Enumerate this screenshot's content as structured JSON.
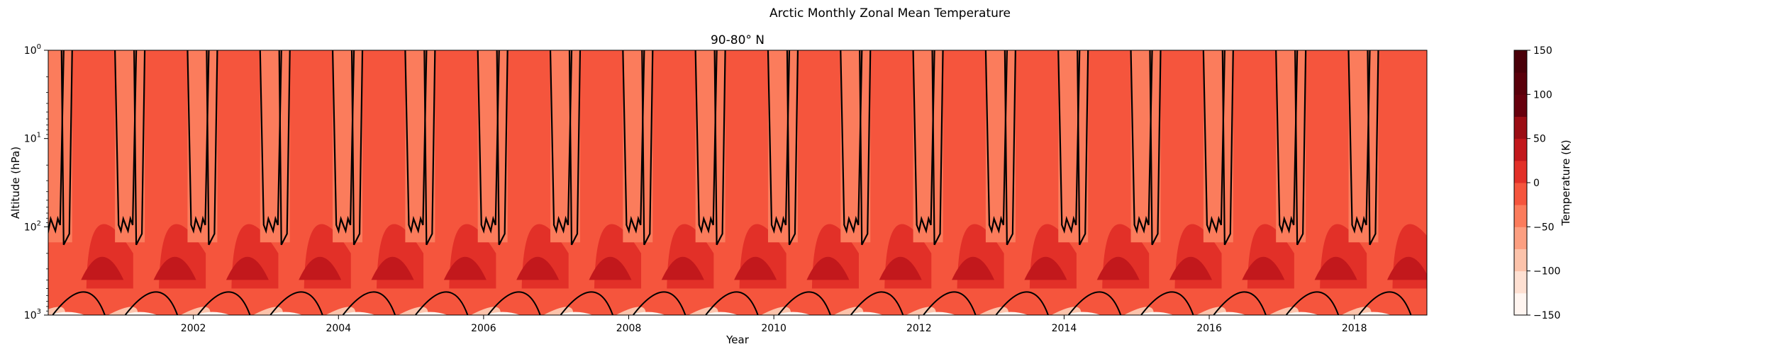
{
  "figure": {
    "suptitle": "Arctic Monthly Zonal Mean Temperature"
  },
  "chart_data": {
    "type": "heatmap",
    "title": "90-80° N",
    "xlabel": "Year",
    "ylabel": "Altitude (hPa)",
    "x_range": [
      "2000-01",
      "2019-01"
    ],
    "x_ticks": [
      "2002",
      "2004",
      "2006",
      "2008",
      "2010",
      "2012",
      "2014",
      "2016",
      "2018"
    ],
    "y_scale": "log",
    "y_range": [
      1000,
      1
    ],
    "y_ticks": [
      {
        "value": 1,
        "base": "10",
        "exp": "0"
      },
      {
        "value": 10,
        "base": "10",
        "exp": "1"
      },
      {
        "value": 100,
        "base": "10",
        "exp": "2"
      },
      {
        "value": 1000,
        "base": "10",
        "exp": "3"
      }
    ],
    "colorbar": {
      "label": "Temperature (K)",
      "range": [
        -150,
        150
      ],
      "levels": [
        -150,
        -125,
        -100,
        -75,
        -50,
        -25,
        0,
        25,
        50,
        75,
        100,
        125,
        150
      ],
      "ticks": [
        "−150",
        "−100",
        "−50",
        "0",
        "50",
        "100",
        "150"
      ],
      "tick_values": [
        -150,
        -100,
        -50,
        0,
        50,
        100,
        150
      ],
      "colors": [
        "#fff5f0",
        "#fee0d2",
        "#fcc3ab",
        "#fc9f81",
        "#fb7c5c",
        "#f5553d",
        "#e23028",
        "#c2181c",
        "#9b0d14",
        "#67000d",
        "#5a000b",
        "#4a0009"
      ]
    },
    "contour_color": "#000000",
    "grid": false
  }
}
